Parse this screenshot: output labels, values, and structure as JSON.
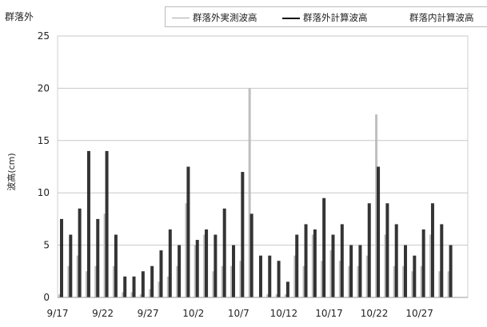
{
  "chart_data": {
    "type": "line",
    "title": "群落外",
    "xlabel": "",
    "ylabel": "波高(cm)",
    "ylim": [
      0,
      25
    ],
    "yticks": [
      "0",
      "5",
      "10",
      "15",
      "20",
      "25"
    ],
    "xticks": [
      "9/17",
      "9/22",
      "9/27",
      "10/2",
      "10/7",
      "10/12",
      "10/17",
      "10/22",
      "10/27"
    ],
    "grid": true,
    "legend_position": "top",
    "legend": [
      "群落外実測波高",
      "群落外計算波高",
      "群落内計算波高"
    ],
    "series": [
      {
        "name": "群落外実測波高",
        "color": "#b8b8b8",
        "x": [
          "9/17",
          "9/18",
          "9/19",
          "9/20",
          "9/21",
          "9/22",
          "9/23",
          "9/24",
          "9/25",
          "9/26",
          "9/27",
          "9/28",
          "9/29",
          "9/30",
          "10/1",
          "10/2",
          "10/3",
          "10/4",
          "10/5",
          "10/6",
          "10/7",
          "10/8",
          "10/9",
          "10/10",
          "10/11",
          "10/12",
          "10/13",
          "10/14",
          "10/15",
          "10/16",
          "10/17",
          "10/18",
          "10/19",
          "10/20",
          "10/21",
          "10/22",
          "10/23",
          "10/24",
          "10/25",
          "10/26",
          "10/27",
          "10/28",
          "10/29",
          "10/30"
        ],
        "values": [
          0.3,
          3,
          4,
          2.5,
          3,
          8,
          3,
          0.5,
          0.5,
          0.3,
          0.8,
          1.5,
          2,
          3,
          9,
          5,
          6,
          2.5,
          3,
          3,
          3.5,
          20,
          0,
          0.3,
          0.3,
          0.3,
          4,
          3,
          6,
          3.5,
          4.5,
          3.5,
          3,
          3,
          4,
          17.5,
          6,
          3,
          3,
          2.5,
          3,
          6,
          2.5,
          2.5
        ]
      },
      {
        "name": "群落外計算波高",
        "color": "#111111",
        "x": [
          "9/17",
          "9/18",
          "9/19",
          "9/20",
          "9/21",
          "9/22",
          "9/23",
          "9/24",
          "9/25",
          "9/26",
          "9/27",
          "9/28",
          "9/29",
          "9/30",
          "10/1",
          "10/2",
          "10/3",
          "10/4",
          "10/5",
          "10/6",
          "10/7",
          "10/8",
          "10/9",
          "10/10",
          "10/11",
          "10/12",
          "10/13",
          "10/14",
          "10/15",
          "10/16",
          "10/17",
          "10/18",
          "10/19",
          "10/20",
          "10/21",
          "10/22",
          "10/23",
          "10/24",
          "10/25",
          "10/26",
          "10/27",
          "10/28",
          "10/29",
          "10/30"
        ],
        "values": [
          7.5,
          6,
          8.5,
          14,
          7.5,
          14,
          6,
          2,
          2,
          2.5,
          3,
          4.5,
          6.5,
          5,
          12.5,
          5.5,
          6.5,
          6,
          8.5,
          5,
          12,
          8,
          4,
          4,
          3.5,
          1.5,
          6,
          7,
          6.5,
          9.5,
          6,
          7,
          5,
          5,
          9,
          12.5,
          9,
          7,
          5,
          4,
          6.5,
          9,
          7,
          5
        ]
      },
      {
        "name": "群落内計算波高",
        "color": "#666666",
        "x": [],
        "values": []
      }
    ]
  }
}
